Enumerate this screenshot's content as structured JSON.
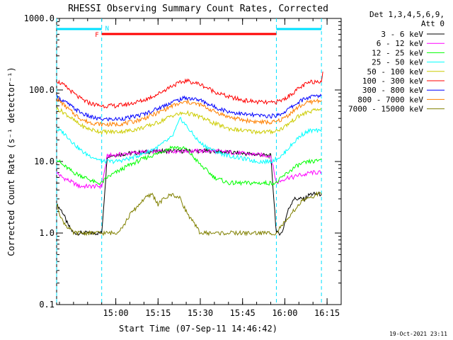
{
  "chart_data": {
    "type": "line",
    "title": "RHESSI Observing Summary Count Rates, Corrected",
    "xlabel": "Start Time (07-Sep-11 14:46:42)",
    "ylabel": "Corrected Count Rate (s⁻¹ detector⁻¹)",
    "yscale": "log",
    "ylim": [
      0.1,
      1000
    ],
    "xlim_minutes": [
      -6,
      95
    ],
    "x_ticks": [
      {
        "label": "15:00",
        "t": 15
      },
      {
        "label": "15:15",
        "t": 30
      },
      {
        "label": "15:30",
        "t": 45
      },
      {
        "label": "15:45",
        "t": 60
      },
      {
        "label": "16:00",
        "t": 75
      },
      {
        "label": "16:15",
        "t": 90
      }
    ],
    "y_ticks": [
      {
        "label": "1000.0",
        "v": 1000
      },
      {
        "label": "100.0",
        "v": 100
      },
      {
        "label": "10.0",
        "v": 10
      },
      {
        "label": "1.0",
        "v": 1
      },
      {
        "label": "0.1",
        "v": 0.1
      }
    ],
    "legend_header": [
      "Det 1,3,4,5,6,9,",
      "Att 0"
    ],
    "legend_position": "top-right",
    "night_times": [
      -6,
      10,
      72,
      88
    ],
    "flags": [
      {
        "label": "N",
        "color": "#00e0ff",
        "segments": [
          [
            -6,
            10
          ],
          [
            72,
            88
          ]
        ]
      },
      {
        "label": "F",
        "color": "#ff0000",
        "segments": [
          [
            10,
            72
          ]
        ]
      }
    ],
    "series": [
      {
        "name": "3 - 6 keV",
        "color": "#000000",
        "x": [
          -6,
          -4,
          -2,
          0,
          2,
          4,
          6,
          8,
          10,
          12,
          20,
          30,
          40,
          50,
          60,
          70,
          72,
          74,
          76,
          78,
          80,
          82,
          84,
          86,
          88
        ],
        "y": [
          2.5,
          2.0,
          1.3,
          1.0,
          1.0,
          1.0,
          1.0,
          1.0,
          1.0,
          12,
          13,
          14,
          14,
          14,
          13,
          12,
          1.0,
          1.0,
          2.0,
          3.0,
          3.0,
          3.0,
          3.5,
          3.5,
          3.5
        ]
      },
      {
        "name": "6 - 12 keV",
        "color": "#ff00ff",
        "x": [
          -6,
          -4,
          -2,
          0,
          2,
          4,
          6,
          8,
          10,
          12,
          20,
          30,
          40,
          50,
          60,
          70,
          72,
          74,
          76,
          78,
          80,
          82,
          84,
          86,
          88
        ],
        "y": [
          7,
          6,
          5.5,
          5,
          4.5,
          4.5,
          4.5,
          4.5,
          4.5,
          12,
          13,
          14,
          14,
          14,
          13,
          12,
          5,
          5.5,
          6,
          6,
          6.5,
          6.5,
          7,
          7,
          7
        ]
      },
      {
        "name": "12 - 25 keV",
        "color": "#00ff00",
        "x": [
          -6,
          -4,
          -2,
          0,
          2,
          4,
          6,
          8,
          10,
          12,
          15,
          20,
          25,
          30,
          35,
          40,
          45,
          50,
          55,
          60,
          65,
          70,
          72,
          74,
          76,
          78,
          80,
          82,
          84,
          86,
          88
        ],
        "y": [
          11,
          9,
          8,
          7,
          6.5,
          6,
          5.5,
          5,
          5,
          6,
          7,
          9,
          11,
          13,
          16,
          15,
          9,
          6,
          5,
          5,
          5,
          5,
          5,
          6,
          7,
          8,
          9,
          9.5,
          10,
          10,
          11
        ]
      },
      {
        "name": "25 - 50 keV",
        "color": "#00ffff",
        "x": [
          -6,
          -4,
          -2,
          0,
          2,
          4,
          6,
          8,
          10,
          15,
          20,
          25,
          30,
          35,
          38,
          42,
          45,
          50,
          55,
          60,
          65,
          70,
          72,
          74,
          76,
          78,
          80,
          82,
          84,
          86,
          88
        ],
        "y": [
          28,
          26,
          22,
          18,
          15,
          13,
          12,
          11,
          10,
          10,
          11,
          13,
          16,
          22,
          40,
          25,
          18,
          14,
          12,
          11,
          10,
          10,
          11,
          12,
          15,
          18,
          22,
          25,
          27,
          27,
          26
        ]
      },
      {
        "name": "50 - 100 keV",
        "color": "#cccc00",
        "x": [
          -6,
          -4,
          -2,
          0,
          2,
          4,
          6,
          8,
          10,
          15,
          20,
          25,
          30,
          35,
          40,
          45,
          50,
          55,
          60,
          65,
          70,
          72,
          74,
          76,
          78,
          80,
          82,
          84,
          86,
          88
        ],
        "y": [
          55,
          50,
          44,
          38,
          33,
          30,
          28,
          27,
          26,
          26,
          27,
          30,
          35,
          44,
          48,
          42,
          34,
          29,
          27,
          26,
          26,
          27,
          29,
          33,
          38,
          43,
          47,
          50,
          52,
          55
        ]
      },
      {
        "name": "100 - 300 keV",
        "color": "#ff0000",
        "x": [
          -6,
          -4,
          -2,
          0,
          2,
          4,
          6,
          8,
          10,
          15,
          20,
          25,
          30,
          35,
          40,
          45,
          50,
          55,
          60,
          65,
          70,
          72,
          74,
          76,
          78,
          80,
          82,
          84,
          86,
          88,
          88.5
        ],
        "y": [
          135,
          120,
          105,
          90,
          78,
          70,
          65,
          62,
          60,
          60,
          64,
          72,
          88,
          115,
          135,
          120,
          95,
          80,
          72,
          68,
          66,
          68,
          72,
          80,
          92,
          105,
          118,
          128,
          132,
          135,
          180
        ]
      },
      {
        "name": "300 - 800 keV",
        "color": "#0000ff",
        "x": [
          -6,
          -4,
          -2,
          0,
          2,
          4,
          6,
          8,
          10,
          15,
          20,
          25,
          30,
          35,
          40,
          45,
          50,
          55,
          60,
          65,
          70,
          72,
          74,
          76,
          78,
          80,
          82,
          84,
          86,
          88
        ],
        "y": [
          80,
          72,
          64,
          56,
          50,
          45,
          42,
          40,
          39,
          39,
          41,
          46,
          55,
          68,
          78,
          72,
          58,
          50,
          46,
          44,
          43,
          44,
          47,
          53,
          60,
          68,
          75,
          80,
          82,
          83
        ]
      },
      {
        "name": "800 - 7000 keV",
        "color": "#ff8000",
        "x": [
          -6,
          -4,
          -2,
          0,
          2,
          4,
          6,
          8,
          10,
          15,
          20,
          25,
          30,
          35,
          40,
          45,
          50,
          55,
          60,
          65,
          70,
          72,
          74,
          76,
          78,
          80,
          82,
          84,
          86,
          88
        ],
        "y": [
          75,
          65,
          55,
          47,
          41,
          37,
          35,
          34,
          33,
          33,
          35,
          40,
          48,
          60,
          68,
          62,
          50,
          42,
          38,
          36,
          35,
          36,
          39,
          44,
          51,
          58,
          64,
          68,
          70,
          72
        ]
      },
      {
        "name": "7000 - 15000 keV",
        "color": "#808000",
        "x": [
          -6,
          -4,
          -2,
          0,
          2,
          4,
          6,
          8,
          10,
          12,
          15,
          18,
          20,
          22,
          25,
          28,
          30,
          32,
          35,
          38,
          40,
          42,
          45,
          48,
          50,
          55,
          60,
          70,
          72,
          74,
          76,
          78,
          80,
          82,
          84,
          86,
          88
        ],
        "y": [
          2.5,
          1.5,
          1.2,
          1.0,
          1.0,
          1.0,
          1.0,
          1.0,
          1.0,
          1.0,
          1.0,
          1.3,
          1.8,
          2.2,
          3.0,
          3.5,
          2.5,
          3.0,
          3.5,
          3.0,
          2.0,
          1.5,
          1.0,
          1.0,
          1.0,
          1.0,
          1.0,
          1.0,
          1.0,
          1.3,
          1.5,
          2.0,
          2.5,
          3.0,
          3.0,
          3.5,
          3.5
        ]
      }
    ]
  },
  "footer": {
    "timestamp": "19-Oct-2021 23:11"
  }
}
